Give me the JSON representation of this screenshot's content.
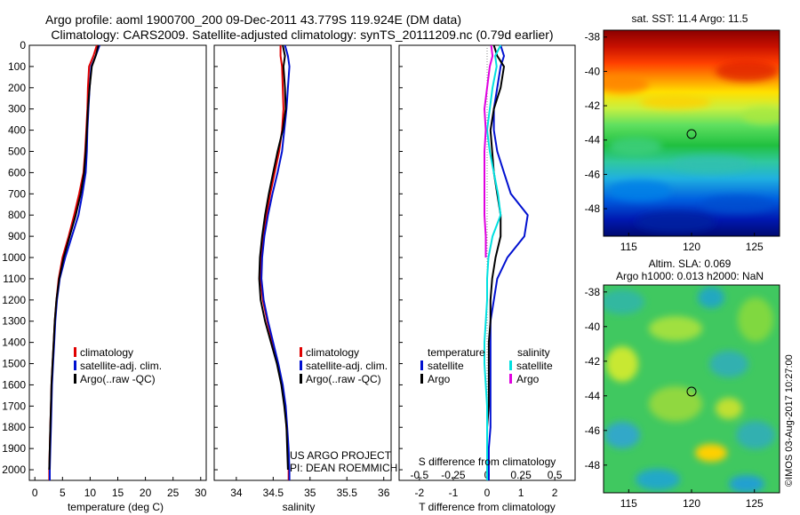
{
  "header": {
    "line1": "Argo profile: aoml 1900700_200 09-Dec-2011 43.779S 119.924E (DM data)",
    "line2": "Climatology: CARS2009. Satellite-adjusted climatology: synTS_20111209.nc (0.79d earlier)"
  },
  "colors": {
    "climatology": "#e00000",
    "satellite": "#0010d0",
    "argo": "#000000",
    "t_sat_diff": "#0010d0",
    "t_argo_diff": "#000000",
    "s_sat_diff": "#00e0e0",
    "s_argo_diff": "#e000e0"
  },
  "panel_temperature": {
    "xlabel": "temperature (deg C)",
    "legend": [
      "climatology",
      "satellite-adj. clim.",
      "Argo(..raw -QC)"
    ]
  },
  "panel_salinity": {
    "xlabel": "salinity",
    "legend": [
      "climatology",
      "satellite-adj. clim.",
      "Argo(..raw -QC)"
    ],
    "project_line1": "US ARGO PROJECT",
    "project_line2": "PI: DEAN ROEMMICH"
  },
  "panel_difference": {
    "xlabel": "T difference from climatology",
    "top_axis_label": "S difference from climatology",
    "legend_t_title": "temperature",
    "legend_s_title": "salinity",
    "legend_t": [
      "satellite",
      "Argo"
    ],
    "legend_s": [
      "satellite",
      "Argo"
    ]
  },
  "map_sst": {
    "title": "sat. SST: 11.4  Argo: 11.5",
    "lat_ticks": [
      "-38",
      "-40",
      "-42",
      "-44",
      "-46",
      "-48"
    ],
    "lon_ticks": [
      "115",
      "120",
      "125"
    ]
  },
  "map_sla": {
    "title1": "Altim. SLA: 0.069",
    "title2": "Argo h1000: 0.013  h2000: NaN",
    "lat_ticks": [
      "-38",
      "-40",
      "-42",
      "-44",
      "-46",
      "-48"
    ],
    "lon_ticks": [
      "115",
      "120",
      "125"
    ]
  },
  "footer_stamp": "©IMOS 03-Aug-2017 10:27:00",
  "chart_data": [
    {
      "type": "line",
      "name": "temperature-profile",
      "xlabel": "temperature (deg C)",
      "ylabel": "",
      "xlim": [
        -1,
        31
      ],
      "ylim": [
        2050,
        0
      ],
      "x_ticks": [
        0,
        5,
        10,
        15,
        20,
        25,
        30
      ],
      "y_ticks": [
        0,
        100,
        200,
        300,
        400,
        500,
        600,
        700,
        800,
        900,
        1000,
        1100,
        1200,
        1300,
        1400,
        1500,
        1600,
        1700,
        1800,
        1900,
        2000
      ],
      "y_reversed": true,
      "series": [
        {
          "name": "climatology",
          "depth": [
            0,
            50,
            100,
            200,
            300,
            400,
            500,
            600,
            700,
            800,
            900,
            1000,
            1100,
            1200,
            1300,
            1400,
            1500,
            1600,
            1700,
            1800,
            1900,
            2000,
            2050
          ],
          "values": [
            11.2,
            10.6,
            9.8,
            9.6,
            9.5,
            9.3,
            9.1,
            8.8,
            8.0,
            7.1,
            6.1,
            5.0,
            4.3,
            3.9,
            3.6,
            3.4,
            3.2,
            3.0,
            2.9,
            2.8,
            2.7,
            2.6,
            2.6
          ]
        },
        {
          "name": "satellite-adj. clim.",
          "depth": [
            0,
            50,
            100,
            200,
            300,
            400,
            500,
            600,
            700,
            800,
            900,
            1000,
            1100,
            1200,
            1300,
            1400,
            1500,
            1600,
            1700,
            1800,
            1900,
            2000,
            2050
          ],
          "values": [
            11.7,
            11.0,
            10.2,
            9.9,
            9.7,
            9.5,
            9.4,
            9.2,
            8.6,
            7.9,
            6.7,
            5.5,
            4.5,
            4.0,
            3.7,
            3.5,
            3.3,
            3.1,
            3.0,
            2.9,
            2.8,
            2.7,
            2.7
          ]
        },
        {
          "name": "Argo(..raw -QC)",
          "depth": [
            0,
            50,
            100,
            200,
            300,
            400,
            500,
            600,
            700,
            800,
            900,
            1000,
            1100,
            1200,
            1300,
            1400,
            1500,
            1600,
            1700,
            1800,
            1900,
            2000
          ],
          "values": [
            11.5,
            11.0,
            10.3,
            9.9,
            9.6,
            9.4,
            9.2,
            8.9,
            8.3,
            7.4,
            6.3,
            5.2,
            4.4,
            3.9,
            3.6,
            3.4,
            3.2,
            3.0,
            2.9,
            2.8,
            2.7,
            2.6
          ]
        }
      ]
    },
    {
      "type": "line",
      "name": "salinity-profile",
      "xlabel": "salinity",
      "ylabel": "",
      "xlim": [
        33.7,
        36.1
      ],
      "ylim": [
        2050,
        0
      ],
      "x_ticks": [
        34,
        34.5,
        35,
        35.5,
        36
      ],
      "y_reversed": true,
      "series": [
        {
          "name": "climatology",
          "depth": [
            0,
            50,
            100,
            200,
            300,
            400,
            500,
            600,
            700,
            800,
            900,
            1000,
            1100,
            1200,
            1300,
            1400,
            1500,
            1600,
            1700,
            1800,
            1900,
            2000,
            2050
          ],
          "values": [
            34.6,
            34.6,
            34.62,
            34.63,
            34.64,
            34.62,
            34.58,
            34.52,
            34.46,
            34.41,
            34.37,
            34.34,
            34.33,
            34.36,
            34.42,
            34.49,
            34.56,
            34.62,
            34.66,
            34.68,
            34.7,
            34.71,
            34.71
          ]
        },
        {
          "name": "satellite-adj. clim.",
          "depth": [
            0,
            50,
            100,
            200,
            300,
            400,
            500,
            600,
            700,
            800,
            900,
            1000,
            1100,
            1200,
            1300,
            1400,
            1500,
            1600,
            1700,
            1800,
            1900,
            2000,
            2050
          ],
          "values": [
            34.66,
            34.7,
            34.72,
            34.7,
            34.68,
            34.65,
            34.62,
            34.56,
            34.49,
            34.43,
            34.38,
            34.35,
            34.34,
            34.37,
            34.43,
            34.5,
            34.57,
            34.63,
            34.67,
            34.69,
            34.71,
            34.72,
            34.72
          ]
        },
        {
          "name": "Argo(..raw -QC)",
          "depth": [
            0,
            50,
            100,
            200,
            300,
            400,
            500,
            600,
            700,
            800,
            900,
            1000,
            1100,
            1200,
            1300,
            1400,
            1500,
            1600,
            1700,
            1800,
            1900,
            2000
          ],
          "values": [
            34.63,
            34.66,
            34.64,
            34.66,
            34.67,
            34.63,
            34.56,
            34.5,
            34.44,
            34.39,
            34.35,
            34.32,
            34.31,
            34.33,
            34.39,
            34.47,
            34.55,
            34.61,
            34.65,
            34.68,
            34.69,
            34.7
          ]
        }
      ]
    },
    {
      "type": "line",
      "name": "difference-profile",
      "xlabel": "T difference from climatology",
      "top_label": "S difference from climatology",
      "xlim": [
        -2.6,
        2.6
      ],
      "ylim": [
        2050,
        0
      ],
      "x_ticks": [
        -2,
        -1,
        0,
        1,
        2
      ],
      "x_tick_labels": [
        "-2",
        "-1",
        "0",
        "1",
        "2"
      ],
      "top_ticks": [
        -0.5,
        -0.25,
        0,
        0.25,
        0.5
      ],
      "top_tick_labels": [
        "-0.5",
        "-0.25",
        "0",
        "0.25",
        "0.5"
      ],
      "y_reversed": true,
      "series": [
        {
          "name": "temperature satellite",
          "depth": [
            0,
            50,
            100,
            200,
            300,
            400,
            500,
            600,
            700,
            800,
            900,
            1000,
            1100,
            1200,
            1300,
            1400,
            1500,
            1600,
            1700,
            1800,
            1900,
            2000,
            2050
          ],
          "values": [
            0.4,
            0.5,
            0.4,
            0.3,
            0.2,
            0.2,
            0.3,
            0.5,
            0.7,
            1.2,
            1.1,
            0.6,
            0.3,
            0.2,
            0.1,
            0.1,
            0.1,
            0.1,
            0.1,
            0.1,
            0.05,
            0.05,
            0.05
          ]
        },
        {
          "name": "temperature Argo",
          "depth": [
            0,
            50,
            100,
            200,
            300,
            400,
            500,
            600,
            700,
            800,
            900,
            1000,
            1100,
            1200,
            1300,
            1400,
            1500,
            1600,
            1700,
            1800,
            1900,
            2000
          ],
          "values": [
            0.2,
            0.3,
            0.5,
            0.4,
            0.2,
            0.1,
            0.15,
            0.2,
            0.3,
            0.4,
            0.4,
            0.25,
            0.15,
            0.1,
            0.1,
            0.05,
            0.05,
            0.05,
            0.05,
            0.0,
            0.0,
            0.0
          ]
        },
        {
          "name": "salinity satellite",
          "depth": [
            0,
            50,
            100,
            200,
            300,
            400,
            500,
            600,
            700,
            800,
            900,
            1000,
            1100,
            1200,
            1300,
            1400,
            1500,
            1600,
            1700,
            1800,
            1900,
            2000,
            2050
          ],
          "values": [
            0.1,
            0.06,
            0.07,
            0.04,
            0.02,
            0.0,
            0.02,
            0.05,
            0.08,
            0.1,
            0.04,
            0.01,
            0.0,
            0.0,
            -0.01,
            -0.02,
            -0.02,
            -0.01,
            0.0,
            0.0,
            0.0,
            0.0,
            0.0
          ]
        },
        {
          "name": "salinity Argo",
          "depth": [
            0,
            50,
            100,
            200,
            300,
            400,
            500,
            600,
            700,
            800,
            900,
            1000
          ],
          "values": [
            0.03,
            0.04,
            0.02,
            0.0,
            -0.02,
            -0.01,
            -0.02,
            -0.02,
            -0.02,
            -0.02,
            -0.01,
            -0.01
          ]
        }
      ]
    },
    {
      "type": "heatmap",
      "name": "sat-sst-map",
      "title": "sat. SST: 11.4  Argo: 11.5",
      "xlim": [
        113,
        127
      ],
      "ylim": [
        -49.6,
        -37.6
      ],
      "x_ticks": [
        115,
        120,
        125
      ],
      "y_ticks": [
        -38,
        -40,
        -42,
        -44,
        -46,
        -48
      ],
      "marker": {
        "lon": 119.924,
        "lat": -43.779
      }
    },
    {
      "type": "heatmap",
      "name": "altim-sla-map",
      "title": "Altim. SLA: 0.069",
      "xlim": [
        113,
        127
      ],
      "ylim": [
        -49.6,
        -37.6
      ],
      "x_ticks": [
        115,
        120,
        125
      ],
      "y_ticks": [
        -38,
        -40,
        -42,
        -44,
        -46,
        -48
      ],
      "marker": {
        "lon": 119.924,
        "lat": -43.779
      }
    }
  ]
}
